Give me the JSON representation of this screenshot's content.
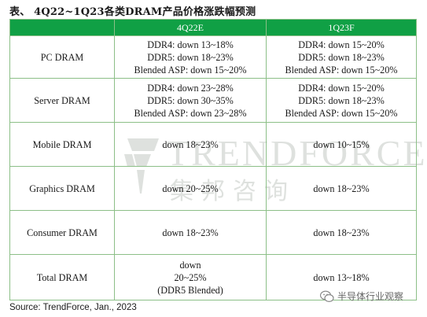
{
  "title": "表、 4Q22~1Q23各类DRAM产品价格涨跌幅预测",
  "table": {
    "headers": [
      "",
      "4Q22E",
      "1Q23F"
    ],
    "rows": [
      {
        "label": "PC DRAM",
        "q4": [
          "DDR4: down 13~18%",
          "DDR5: down 18~23%",
          "Blended ASP: down 15~20%"
        ],
        "q1": [
          "DDR4: down 15~20%",
          "DDR5: down 18~23%",
          "Blended ASP: down 15~20%"
        ]
      },
      {
        "label": "Server DRAM",
        "q4": [
          "DDR4: down 23~28%",
          "DDR5: down 30~35%",
          "Blended ASP: down 23~28%"
        ],
        "q1": [
          "DDR4: down 15~20%",
          "DDR5: down 18~23%",
          "Blended ASP: down 15~20%"
        ]
      },
      {
        "label": "Mobile DRAM",
        "q4": [
          "down 18~23%"
        ],
        "q1": [
          "down 10~15%"
        ]
      },
      {
        "label": "Graphics DRAM",
        "q4": [
          "down 20~25%"
        ],
        "q1": [
          "down 18~23%"
        ]
      },
      {
        "label": "Consumer DRAM",
        "q4": [
          "down 18~23%"
        ],
        "q1": [
          "down 18~23%"
        ]
      },
      {
        "label": "Total DRAM",
        "q4": [
          "down",
          "20~25%",
          "(DDR5 Blended)"
        ],
        "q1": [
          "down 13~18%"
        ]
      }
    ]
  },
  "source": "Source: TrendForce, Jan., 2023",
  "watermark": {
    "brand": "TRENDFORCE",
    "brand_cn": "集邦咨询",
    "icon": "trendforce-logo-icon"
  },
  "wechat": {
    "icon": "wechat-icon",
    "label": "半导体行业观察"
  },
  "colors": {
    "header_bg": "#10a045",
    "header_text": "#ffffff",
    "border": "#8cbf87"
  }
}
